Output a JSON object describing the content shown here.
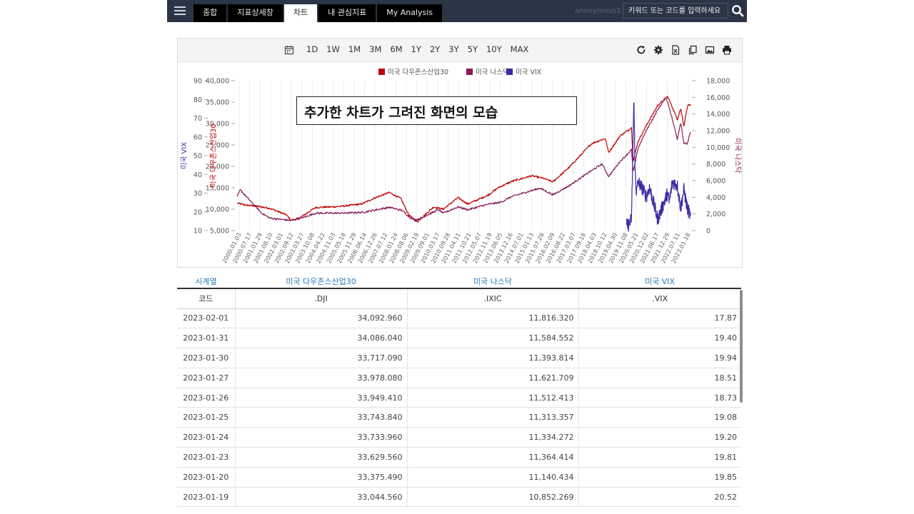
{
  "header": {
    "tabs": [
      {
        "label": "종합",
        "active": false
      },
      {
        "label": "지표상세창",
        "active": false
      },
      {
        "label": "차트",
        "active": true
      },
      {
        "label": "내 관심지표",
        "active": false
      },
      {
        "label": "My Analysis",
        "active": false
      }
    ],
    "user": "anonymous1",
    "search_placeholder": "키워드 또는 코드를 입력하세요"
  },
  "toolbar": {
    "ranges": [
      "1D",
      "1W",
      "1M",
      "3M",
      "6M",
      "1Y",
      "2Y",
      "3Y",
      "5Y",
      "10Y",
      "MAX"
    ],
    "icons": [
      "refresh-icon",
      "gear-icon",
      "excel-icon",
      "copy-icon",
      "image-icon",
      "print-icon"
    ]
  },
  "annotation": "추가한 차트가 그려진 화면의 모습",
  "chart_data": {
    "type": "line",
    "legend_position": "top",
    "grid": true,
    "series": [
      {
        "name": "미국 다우존스산업30",
        "color": "#c00000",
        "axis": "left-inner",
        "x": [
          "2000-01-03",
          "2000-07",
          "2001-01",
          "2001-09",
          "2002-07",
          "2002-10",
          "2003-03",
          "2004-01",
          "2005-03",
          "2006-05",
          "2007-01",
          "2007-10",
          "2008-05",
          "2008-10",
          "2009-03",
          "2010-01",
          "2010-07",
          "2011-04",
          "2011-10",
          "2012-10",
          "2013-05",
          "2014-01",
          "2015-01",
          "2015-08",
          "2016-02",
          "2016-12",
          "2017-12",
          "2018-02",
          "2018-10",
          "2018-12",
          "2019-07",
          "2020-02",
          "2020-03",
          "2020-06",
          "2020-11",
          "2021-06",
          "2021-12",
          "2022-01",
          "2022-06",
          "2022-08",
          "2022-10",
          "2022-12",
          "2023-01",
          "2023-02-01"
        ],
        "y": [
          11400,
          10900,
          10700,
          10200,
          8700,
          7400,
          7900,
          10400,
          10600,
          11200,
          12600,
          13900,
          12500,
          8600,
          7000,
          10500,
          10000,
          12700,
          11200,
          13200,
          15100,
          16500,
          17800,
          17200,
          16400,
          19800,
          24700,
          25400,
          26500,
          23200,
          27100,
          29000,
          21200,
          25800,
          29500,
          34200,
          36300,
          35500,
          31000,
          33500,
          29500,
          33800,
          34500,
          34093
        ]
      },
      {
        "name": "미국 나스닥",
        "color": "#8b1a5a",
        "axis": "right",
        "x": [
          "2000-01-03",
          "2000-03",
          "2000-07",
          "2001-04",
          "2001-09",
          "2002-10",
          "2003-06",
          "2004-01",
          "2005-06",
          "2006-06",
          "2007-10",
          "2008-06",
          "2008-11",
          "2009-03",
          "2010-04",
          "2010-07",
          "2011-04",
          "2011-10",
          "2012-09",
          "2013-06",
          "2014-01",
          "2015-06",
          "2016-02",
          "2016-12",
          "2017-12",
          "2018-08",
          "2018-12",
          "2019-07",
          "2020-02",
          "2020-03",
          "2020-06",
          "2020-11",
          "2021-06",
          "2021-11",
          "2022-01",
          "2022-06",
          "2022-08",
          "2022-10",
          "2022-12",
          "2023-02-01"
        ],
        "y": [
          4100,
          4900,
          4000,
          2100,
          1500,
          1200,
          1600,
          2100,
          2100,
          2200,
          2800,
          2400,
          1500,
          1300,
          2500,
          2100,
          2850,
          2500,
          3100,
          3400,
          4100,
          5100,
          4300,
          5400,
          7000,
          8000,
          6500,
          8300,
          9700,
          7000,
          9900,
          12000,
          14500,
          16000,
          14800,
          11000,
          13000,
          10500,
          10400,
          11816
        ]
      },
      {
        "name": "미국 VIX",
        "color": "#3f2aa6",
        "axis": "left-outer",
        "x": [
          "2019-11-01",
          "2019-12",
          "2020-01",
          "2020-02",
          "2020-03-16",
          "2020-04",
          "2020-05",
          "2020-06",
          "2020-09",
          "2020-11",
          "2021-01",
          "2021-06",
          "2021-12",
          "2022-01",
          "2022-03",
          "2022-06",
          "2022-08",
          "2022-10",
          "2022-12",
          "2023-01",
          "2023-02-01"
        ],
        "y": [
          13,
          13,
          14,
          17,
          82,
          45,
          30,
          36,
          32,
          28,
          33,
          16,
          30,
          25,
          36,
          34,
          22,
          32,
          22,
          20,
          17.87
        ]
      }
    ],
    "axes": {
      "left_outer": {
        "label": "미국 VIX",
        "min": 10,
        "max": 90,
        "ticks": [
          "10",
          "20",
          "30",
          "40",
          "50",
          "60",
          "70",
          "80",
          "90"
        ]
      },
      "left_inner": {
        "label": "미국 다우존스산업30",
        "min": 5000,
        "max": 40000,
        "ticks": [
          "5,000",
          "10,000",
          "15,000",
          "20,000",
          "25,000",
          "30,000",
          "35,000",
          "40,000"
        ]
      },
      "right": {
        "label": "미국 나스닥",
        "min": 0,
        "max": 18000,
        "ticks": [
          "0",
          "2,000",
          "4,000",
          "6,000",
          "8,000",
          "10,000",
          "12,000",
          "14,000",
          "16,000",
          "18,000"
        ]
      },
      "x_ticks": [
        "2000.01.03",
        "2000.07.17",
        "2001.01.29",
        "2001.08.10",
        "2002.03.01",
        "2002.09.12",
        "2003.03.27",
        "2003.10.08",
        "2004.04.22",
        "2004.11.03",
        "2005.05.18",
        "2005.11.29",
        "2006.06.14",
        "2006.12.26",
        "2007.07.12",
        "2008.01.24",
        "2008.08.06",
        "2009.02.19",
        "2009.09.01",
        "2010.03.17",
        "2010.09.28",
        "2011.04.11",
        "2011.10.21",
        "2012.05.07",
        "2012.11.19",
        "2013.06.05",
        "2013.12.16",
        "2014.07.01",
        "2015.01.13",
        "2015.07.28",
        "2016.02.09",
        "2016.08.22",
        "2017.03.07",
        "2017.09.18",
        "2018.04.03",
        "2018.10.12",
        "2019.04.30",
        "2019.11.08",
        "2020.05.21",
        "2020.12.02",
        "2021.06.17",
        "2021.12.29",
        "2022.07.11",
        "2023.01.18"
      ]
    }
  },
  "table": {
    "group_headers": [
      "시계열",
      "미국 다우존스산업30",
      "미국 나스닥",
      "미국 VIX"
    ],
    "codes": [
      "코드",
      ".DJI",
      ".IXIC",
      ".VIX"
    ],
    "rows": [
      [
        "2023-02-01",
        "34,092.960",
        "11,816.320",
        "17.87"
      ],
      [
        "2023-01-31",
        "34,086.040",
        "11,584.552",
        "19.40"
      ],
      [
        "2023-01-30",
        "33,717.090",
        "11,393.814",
        "19.94"
      ],
      [
        "2023-01-27",
        "33,978.080",
        "11,621.709",
        "18.51"
      ],
      [
        "2023-01-26",
        "33,949.410",
        "11,512.413",
        "18.73"
      ],
      [
        "2023-01-25",
        "33,743.840",
        "11,313.357",
        "19.08"
      ],
      [
        "2023-01-24",
        "33,733.960",
        "11,334.272",
        "19.20"
      ],
      [
        "2023-01-23",
        "33,629.560",
        "11,364.414",
        "19.81"
      ],
      [
        "2023-01-20",
        "33,375.490",
        "11,140.434",
        "19.85"
      ],
      [
        "2023-01-19",
        "33,044.560",
        "10,852.269",
        "20.52"
      ]
    ]
  }
}
